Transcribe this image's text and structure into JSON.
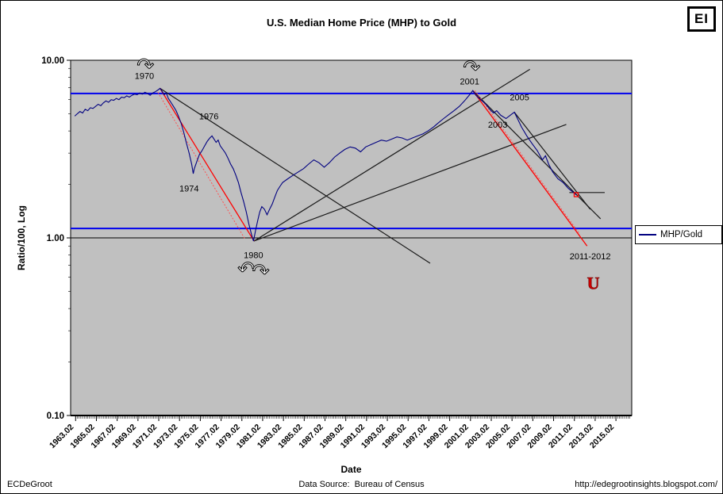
{
  "header": {
    "title": "U.S. Median Home Price (MHP) to Gold",
    "logo": "EI"
  },
  "footer": {
    "left": "ECDeGroot",
    "center": "Data Source:  Bureau of Census",
    "right": "http://edegrootinsights.blogspot.com/"
  },
  "legend": {
    "label": "MHP/Gold",
    "line_color": "#000080"
  },
  "chart_data": {
    "type": "line",
    "title": "U.S. Median Home Price (MHP) to Gold",
    "xlabel": "Date",
    "ylabel": "Ratio/100, Log",
    "y_scale": "log",
    "ylim": [
      0.1,
      10
    ],
    "xlim": [
      1962.6,
      2016.6
    ],
    "grid": false,
    "legend_position": "right",
    "y_ticks": [
      {
        "v": 10,
        "label": "10.00"
      },
      {
        "v": 1,
        "label": "1.00"
      },
      {
        "v": 0.1,
        "label": "0.10"
      }
    ],
    "x_ticks": [
      {
        "v": 1963.08,
        "label": "1963.02"
      },
      {
        "v": 1965.08,
        "label": "1965.02"
      },
      {
        "v": 1967.08,
        "label": "1967.02"
      },
      {
        "v": 1969.08,
        "label": "1969.02"
      },
      {
        "v": 1971.08,
        "label": "1971.02"
      },
      {
        "v": 1973.08,
        "label": "1973.02"
      },
      {
        "v": 1975.08,
        "label": "1975.02"
      },
      {
        "v": 1977.08,
        "label": "1977.02"
      },
      {
        "v": 1979.08,
        "label": "1979.02"
      },
      {
        "v": 1981.08,
        "label": "1981.02"
      },
      {
        "v": 1983.08,
        "label": "1983.02"
      },
      {
        "v": 1985.08,
        "label": "1985.02"
      },
      {
        "v": 1987.08,
        "label": "1987.02"
      },
      {
        "v": 1989.08,
        "label": "1989.02"
      },
      {
        "v": 1991.08,
        "label": "1991.02"
      },
      {
        "v": 1993.08,
        "label": "1993.02"
      },
      {
        "v": 1995.08,
        "label": "1995.02"
      },
      {
        "v": 1997.08,
        "label": "1997.02"
      },
      {
        "v": 1999.08,
        "label": "1999.02"
      },
      {
        "v": 2001.08,
        "label": "2001.02"
      },
      {
        "v": 2003.08,
        "label": "2003.02"
      },
      {
        "v": 2005.08,
        "label": "2005.02"
      },
      {
        "v": 2007.08,
        "label": "2007.02"
      },
      {
        "v": 2009.08,
        "label": "2009.02"
      },
      {
        "v": 2011.08,
        "label": "2011.02"
      },
      {
        "v": 2013.08,
        "label": "2013.02"
      },
      {
        "v": 2015.08,
        "label": "2015.02"
      }
    ],
    "hlines": [
      {
        "y": 6.5,
        "color": "#0000ee",
        "w": 2
      },
      {
        "y": 1.13,
        "color": "#0000ee",
        "w": 2
      },
      {
        "y": 1.0,
        "color": "#000000",
        "w": 1
      }
    ],
    "trendlines": [
      {
        "x1": 1971.2,
        "y1": 6.95,
        "x2": 1997.2,
        "y2": 0.72,
        "color": "#1a1a1a",
        "w": 1.2
      },
      {
        "x1": 1980.25,
        "y1": 0.96,
        "x2": 2006.8,
        "y2": 8.9,
        "color": "#1a1a1a",
        "w": 1.2
      },
      {
        "x1": 1980.25,
        "y1": 0.96,
        "x2": 2010.3,
        "y2": 4.35,
        "color": "#1a1a1a",
        "w": 1.2
      },
      {
        "x1": 2001.3,
        "y1": 6.75,
        "x2": 2013.6,
        "y2": 1.28,
        "color": "#1a1a1a",
        "w": 1.2
      },
      {
        "x1": 2005.3,
        "y1": 5.1,
        "x2": 2012.6,
        "y2": 1.45,
        "color": "#1a1a1a",
        "w": 1.2
      },
      {
        "x1": 2010.6,
        "y1": 1.8,
        "x2": 2014.0,
        "y2": 1.8,
        "color": "#1a1a1a",
        "w": 1.2
      },
      {
        "x1": 1971.2,
        "y1": 6.95,
        "x2": 1980.25,
        "y2": 0.96,
        "color": "#ff0000",
        "w": 1.3
      },
      {
        "x1": 1971.0,
        "y1": 6.6,
        "x2": 1979.4,
        "y2": 0.98,
        "color": "#ff5050",
        "w": 1,
        "dash": "2,2"
      },
      {
        "x1": 2001.3,
        "y1": 6.75,
        "x2": 2012.3,
        "y2": 0.9,
        "color": "#ff0000",
        "w": 1.3
      },
      {
        "x1": 2001.5,
        "y1": 6.75,
        "x2": 2011.6,
        "y2": 1.05,
        "color": "#ff5050",
        "w": 1,
        "dash": "2,2"
      }
    ],
    "annotations": [
      {
        "x": 1969.7,
        "y": 8.2,
        "text": "1970"
      },
      {
        "x": 1975.9,
        "y": 4.85,
        "text": "1976"
      },
      {
        "x": 1974.0,
        "y": 1.9,
        "text": "1974"
      },
      {
        "x": 1980.2,
        "y": 0.8,
        "text": "1980"
      },
      {
        "x": 2001.0,
        "y": 7.6,
        "text": "2001"
      },
      {
        "x": 2005.8,
        "y": 6.2,
        "text": "2005"
      },
      {
        "x": 2003.7,
        "y": 4.35,
        "text": "2003"
      },
      {
        "x": 2012.6,
        "y": 0.79,
        "text": "2011-2012"
      }
    ],
    "arrows": [
      {
        "x": 1969.8,
        "y": 9.35,
        "glyph": "↷"
      },
      {
        "x": 2001.2,
        "y": 9.1,
        "glyph": "↷"
      },
      {
        "x": 1979.5,
        "y": 0.67,
        "glyph": "↶"
      },
      {
        "x": 1980.9,
        "y": 0.65,
        "glyph": "↷"
      }
    ],
    "u_glyph": {
      "x": 2012.9,
      "y": 0.56,
      "text": "U",
      "color": "#cc0000"
    },
    "end_marker": {
      "x": 2011.25,
      "y": 1.75,
      "color": "#ff0000"
    },
    "series": [
      {
        "name": "MHP/Gold",
        "color": "#000080",
        "points": [
          [
            1963.0,
            4.85
          ],
          [
            1963.25,
            5.0
          ],
          [
            1963.5,
            5.15
          ],
          [
            1963.75,
            5.05
          ],
          [
            1964.0,
            5.3
          ],
          [
            1964.25,
            5.2
          ],
          [
            1964.5,
            5.4
          ],
          [
            1964.75,
            5.35
          ],
          [
            1965.0,
            5.5
          ],
          [
            1965.25,
            5.65
          ],
          [
            1965.5,
            5.55
          ],
          [
            1965.75,
            5.75
          ],
          [
            1966.0,
            5.9
          ],
          [
            1966.25,
            5.8
          ],
          [
            1966.5,
            6.0
          ],
          [
            1966.75,
            5.95
          ],
          [
            1967.0,
            6.1
          ],
          [
            1967.25,
            6.0
          ],
          [
            1967.5,
            6.2
          ],
          [
            1967.75,
            6.15
          ],
          [
            1968.0,
            6.3
          ],
          [
            1968.25,
            6.2
          ],
          [
            1968.5,
            6.35
          ],
          [
            1968.75,
            6.45
          ],
          [
            1969.0,
            6.4
          ],
          [
            1969.25,
            6.55
          ],
          [
            1969.5,
            6.45
          ],
          [
            1969.75,
            6.6
          ],
          [
            1970.0,
            6.5
          ],
          [
            1970.25,
            6.35
          ],
          [
            1970.5,
            6.55
          ],
          [
            1970.75,
            6.65
          ],
          [
            1971.0,
            6.8
          ],
          [
            1971.2,
            6.95
          ],
          [
            1971.4,
            6.7
          ],
          [
            1971.6,
            6.4
          ],
          [
            1971.8,
            6.55
          ],
          [
            1972.0,
            6.1
          ],
          [
            1972.25,
            5.8
          ],
          [
            1972.5,
            5.5
          ],
          [
            1972.75,
            5.2
          ],
          [
            1973.0,
            4.8
          ],
          [
            1973.25,
            4.4
          ],
          [
            1973.5,
            3.9
          ],
          [
            1973.75,
            3.4
          ],
          [
            1974.0,
            3.0
          ],
          [
            1974.25,
            2.6
          ],
          [
            1974.4,
            2.3
          ],
          [
            1974.5,
            2.45
          ],
          [
            1974.75,
            2.7
          ],
          [
            1975.0,
            2.95
          ],
          [
            1975.25,
            3.1
          ],
          [
            1975.5,
            3.3
          ],
          [
            1975.75,
            3.5
          ],
          [
            1976.0,
            3.65
          ],
          [
            1976.2,
            3.75
          ],
          [
            1976.4,
            3.6
          ],
          [
            1976.6,
            3.45
          ],
          [
            1976.8,
            3.55
          ],
          [
            1977.0,
            3.3
          ],
          [
            1977.25,
            3.15
          ],
          [
            1977.5,
            3.0
          ],
          [
            1977.75,
            2.8
          ],
          [
            1978.0,
            2.6
          ],
          [
            1978.25,
            2.45
          ],
          [
            1978.5,
            2.25
          ],
          [
            1978.75,
            2.05
          ],
          [
            1979.0,
            1.8
          ],
          [
            1979.25,
            1.6
          ],
          [
            1979.5,
            1.4
          ],
          [
            1979.75,
            1.2
          ],
          [
            1980.0,
            1.05
          ],
          [
            1980.2,
            0.96
          ],
          [
            1980.4,
            1.1
          ],
          [
            1980.6,
            1.25
          ],
          [
            1980.8,
            1.4
          ],
          [
            1981.0,
            1.5
          ],
          [
            1981.25,
            1.45
          ],
          [
            1981.5,
            1.35
          ],
          [
            1981.75,
            1.45
          ],
          [
            1982.0,
            1.55
          ],
          [
            1982.25,
            1.7
          ],
          [
            1982.5,
            1.85
          ],
          [
            1982.75,
            1.95
          ],
          [
            1983.0,
            2.05
          ],
          [
            1983.5,
            2.15
          ],
          [
            1984.0,
            2.25
          ],
          [
            1984.5,
            2.35
          ],
          [
            1985.0,
            2.45
          ],
          [
            1985.5,
            2.6
          ],
          [
            1986.0,
            2.75
          ],
          [
            1986.5,
            2.65
          ],
          [
            1987.0,
            2.5
          ],
          [
            1987.5,
            2.65
          ],
          [
            1988.0,
            2.85
          ],
          [
            1988.5,
            3.0
          ],
          [
            1989.0,
            3.15
          ],
          [
            1989.5,
            3.25
          ],
          [
            1990.0,
            3.2
          ],
          [
            1990.5,
            3.05
          ],
          [
            1991.0,
            3.25
          ],
          [
            1991.5,
            3.35
          ],
          [
            1992.0,
            3.45
          ],
          [
            1992.5,
            3.55
          ],
          [
            1993.0,
            3.5
          ],
          [
            1993.5,
            3.6
          ],
          [
            1994.0,
            3.7
          ],
          [
            1994.5,
            3.65
          ],
          [
            1995.0,
            3.55
          ],
          [
            1995.5,
            3.65
          ],
          [
            1996.0,
            3.75
          ],
          [
            1996.5,
            3.85
          ],
          [
            1997.0,
            4.0
          ],
          [
            1997.5,
            4.2
          ],
          [
            1998.0,
            4.45
          ],
          [
            1998.5,
            4.7
          ],
          [
            1999.0,
            4.95
          ],
          [
            1999.5,
            5.2
          ],
          [
            2000.0,
            5.5
          ],
          [
            2000.5,
            5.9
          ],
          [
            2001.0,
            6.4
          ],
          [
            2001.3,
            6.75
          ],
          [
            2001.6,
            6.35
          ],
          [
            2002.0,
            6.05
          ],
          [
            2002.5,
            5.7
          ],
          [
            2003.0,
            5.25
          ],
          [
            2003.3,
            5.05
          ],
          [
            2003.6,
            5.2
          ],
          [
            2004.0,
            4.9
          ],
          [
            2004.5,
            4.7
          ],
          [
            2005.0,
            4.95
          ],
          [
            2005.3,
            5.1
          ],
          [
            2005.6,
            4.7
          ],
          [
            2006.0,
            4.2
          ],
          [
            2006.5,
            3.75
          ],
          [
            2007.0,
            3.4
          ],
          [
            2007.5,
            3.1
          ],
          [
            2008.0,
            2.75
          ],
          [
            2008.3,
            2.9
          ],
          [
            2008.6,
            2.6
          ],
          [
            2009.0,
            2.35
          ],
          [
            2009.5,
            2.15
          ],
          [
            2010.0,
            2.05
          ],
          [
            2010.5,
            1.9
          ],
          [
            2011.0,
            1.8
          ],
          [
            2011.25,
            1.75
          ]
        ]
      }
    ]
  }
}
